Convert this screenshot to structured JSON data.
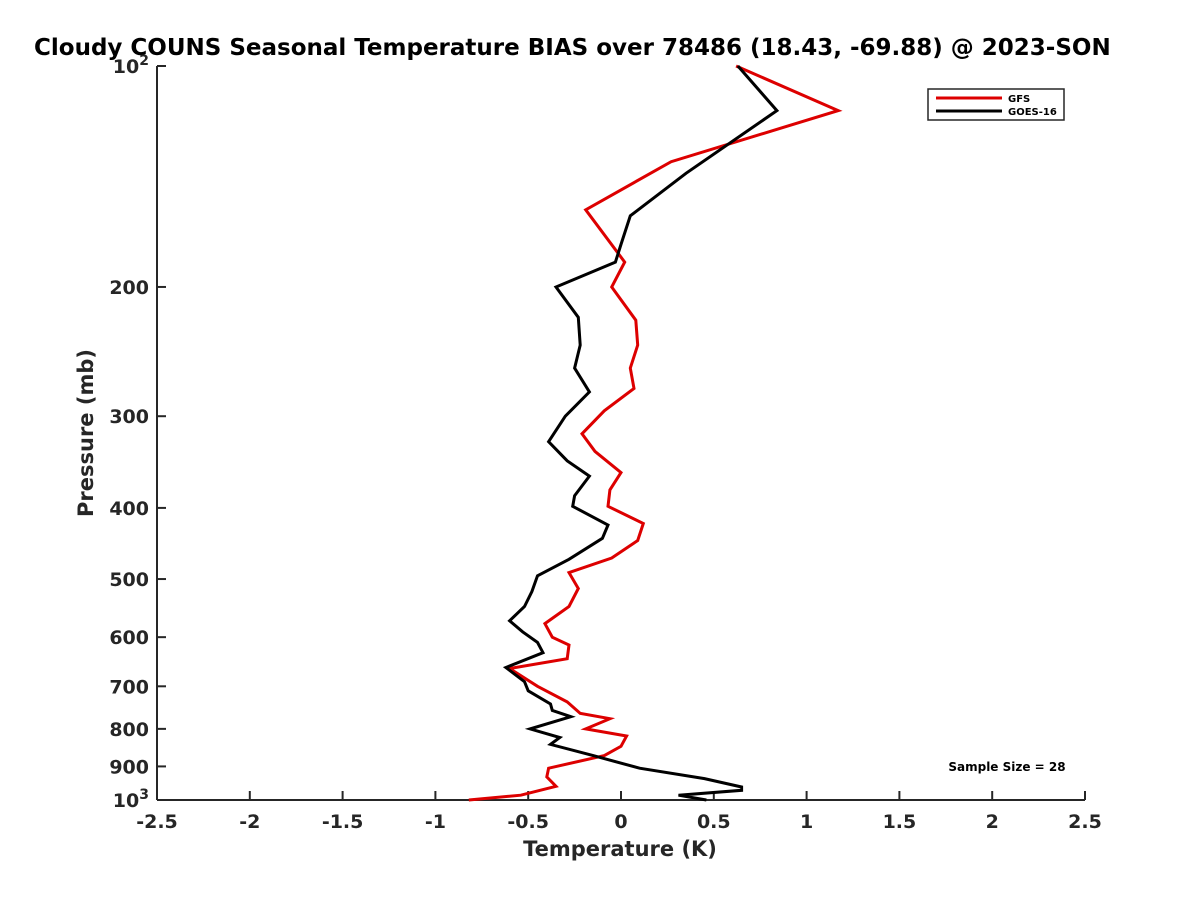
{
  "chart_data": {
    "type": "line",
    "title": "Cloudy COUNS Seasonal Temperature BIAS over 78486 (18.43, -69.88) @ 2023-SON",
    "xlabel": "Temperature (K)",
    "ylabel": "Pressure (mb)",
    "xlim": [
      -2.5,
      2.5
    ],
    "ylim": [
      100,
      1000
    ],
    "y_scale": "log",
    "y_reversed": true,
    "x_ticks": [
      "-2.5",
      "-2",
      "-1.5",
      "-1",
      "-0.5",
      "0",
      "0.5",
      "1",
      "1.5",
      "2",
      "2.5"
    ],
    "x_tick_values": [
      -2.5,
      -2,
      -1.5,
      -1,
      -0.5,
      0,
      0.5,
      1,
      1.5,
      2,
      2.5
    ],
    "y_ticks": [
      {
        "value": 100,
        "label": "10",
        "exp": "2"
      },
      {
        "value": 200,
        "label": "200"
      },
      {
        "value": 300,
        "label": "300"
      },
      {
        "value": 400,
        "label": "400"
      },
      {
        "value": 500,
        "label": "500"
      },
      {
        "value": 600,
        "label": "600"
      },
      {
        "value": 700,
        "label": "700"
      },
      {
        "value": 800,
        "label": "800"
      },
      {
        "value": 900,
        "label": "900"
      },
      {
        "value": 1000,
        "label": "10",
        "exp": "3"
      }
    ],
    "grid": false,
    "legend_position": "top-right",
    "annotation": "Sample Size = 28",
    "series": [
      {
        "name": "GFS",
        "color": "#dd0000",
        "points": [
          [
            0.62,
            100
          ],
          [
            1.17,
            115
          ],
          [
            0.27,
            135
          ],
          [
            -0.19,
            157
          ],
          [
            0.02,
            185
          ],
          [
            -0.05,
            200
          ],
          [
            0.08,
            222
          ],
          [
            0.09,
            240
          ],
          [
            0.05,
            258
          ],
          [
            0.07,
            275
          ],
          [
            -0.09,
            295
          ],
          [
            -0.21,
            317
          ],
          [
            -0.14,
            335
          ],
          [
            0.0,
            358
          ],
          [
            -0.06,
            378
          ],
          [
            -0.07,
            398
          ],
          [
            0.12,
            420
          ],
          [
            0.09,
            443
          ],
          [
            -0.05,
            468
          ],
          [
            -0.28,
            490
          ],
          [
            -0.23,
            515
          ],
          [
            -0.28,
            545
          ],
          [
            -0.41,
            575
          ],
          [
            -0.37,
            600
          ],
          [
            -0.28,
            615
          ],
          [
            -0.29,
            642
          ],
          [
            -0.6,
            662
          ],
          [
            -0.45,
            700
          ],
          [
            -0.29,
            735
          ],
          [
            -0.22,
            762
          ],
          [
            -0.06,
            775
          ],
          [
            -0.19,
            800
          ],
          [
            0.03,
            818
          ],
          [
            0.0,
            845
          ],
          [
            -0.09,
            870
          ],
          [
            -0.39,
            905
          ],
          [
            -0.4,
            930
          ],
          [
            -0.35,
            958
          ],
          [
            -0.54,
            985
          ],
          [
            -0.82,
            1000
          ]
        ]
      },
      {
        "name": "GOES-16",
        "color": "#000000",
        "points": [
          [
            0.63,
            100
          ],
          [
            0.84,
            115
          ],
          [
            0.35,
            140
          ],
          [
            0.05,
            160
          ],
          [
            0.0,
            175
          ],
          [
            -0.03,
            185
          ],
          [
            -0.35,
            200
          ],
          [
            -0.23,
            220
          ],
          [
            -0.22,
            240
          ],
          [
            -0.25,
            258
          ],
          [
            -0.17,
            278
          ],
          [
            -0.3,
            300
          ],
          [
            -0.39,
            325
          ],
          [
            -0.29,
            345
          ],
          [
            -0.17,
            362
          ],
          [
            -0.25,
            385
          ],
          [
            -0.26,
            398
          ],
          [
            -0.07,
            422
          ],
          [
            -0.1,
            440
          ],
          [
            -0.28,
            470
          ],
          [
            -0.45,
            495
          ],
          [
            -0.48,
            520
          ],
          [
            -0.52,
            545
          ],
          [
            -0.6,
            570
          ],
          [
            -0.53,
            590
          ],
          [
            -0.45,
            610
          ],
          [
            -0.42,
            630
          ],
          [
            -0.62,
            660
          ],
          [
            -0.52,
            690
          ],
          [
            -0.5,
            710
          ],
          [
            -0.38,
            740
          ],
          [
            -0.37,
            755
          ],
          [
            -0.27,
            770
          ],
          [
            -0.49,
            800
          ],
          [
            -0.33,
            822
          ],
          [
            -0.38,
            840
          ],
          [
            -0.15,
            870
          ],
          [
            0.1,
            905
          ],
          [
            0.45,
            935
          ],
          [
            0.65,
            960
          ],
          [
            0.65,
            970
          ],
          [
            0.31,
            985
          ],
          [
            0.46,
            1000
          ]
        ]
      }
    ]
  }
}
